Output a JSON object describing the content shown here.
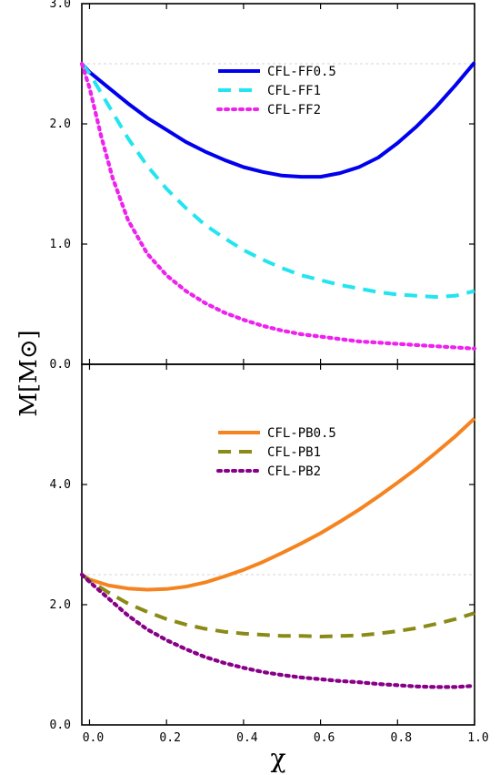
{
  "chart_data": [
    {
      "type": "line",
      "panel": "top",
      "title": "",
      "xlabel": "χ",
      "ylabel": "M[M⊙]",
      "xlim": [
        -0.02,
        1.0
      ],
      "ylim": [
        0.0,
        3.0
      ],
      "xticks": [
        0.0,
        0.2,
        0.4,
        0.6,
        0.8,
        1.0
      ],
      "x_tick_labels": [
        "0.0",
        "0.2",
        "0.4",
        "0.6",
        "0.8",
        "1.0"
      ],
      "yticks": [
        0.0,
        1.0,
        2.0,
        3.0
      ],
      "y_tick_labels": [
        "0.0",
        "1.0",
        "2.0",
        "3.0"
      ],
      "reference_line": 2.5,
      "grid": false,
      "legend_position": "top-center",
      "series": [
        {
          "name": "CFL-FF0.5",
          "color": "#0000ee",
          "dash": "solid",
          "x": [
            -0.02,
            0.0,
            0.05,
            0.1,
            0.15,
            0.2,
            0.25,
            0.3,
            0.35,
            0.4,
            0.45,
            0.5,
            0.55,
            0.6,
            0.65,
            0.7,
            0.75,
            0.8,
            0.85,
            0.9,
            0.95,
            1.0
          ],
          "y": [
            2.5,
            2.43,
            2.3,
            2.17,
            2.05,
            1.95,
            1.85,
            1.77,
            1.7,
            1.64,
            1.6,
            1.57,
            1.56,
            1.56,
            1.59,
            1.64,
            1.72,
            1.84,
            1.98,
            2.14,
            2.32,
            2.51
          ]
        },
        {
          "name": "CFL-FF1",
          "color": "#22e5ef",
          "dash": "dashed",
          "x": [
            -0.02,
            0.0,
            0.05,
            0.1,
            0.15,
            0.2,
            0.25,
            0.3,
            0.35,
            0.4,
            0.45,
            0.5,
            0.55,
            0.6,
            0.65,
            0.7,
            0.75,
            0.8,
            0.85,
            0.9,
            0.95,
            1.0
          ],
          "y": [
            2.5,
            2.42,
            2.15,
            1.88,
            1.65,
            1.46,
            1.3,
            1.16,
            1.05,
            0.95,
            0.87,
            0.8,
            0.74,
            0.7,
            0.66,
            0.63,
            0.6,
            0.58,
            0.57,
            0.56,
            0.57,
            0.61
          ]
        },
        {
          "name": "CFL-FF2",
          "color": "#ee22ee",
          "dash": "dotted",
          "x": [
            -0.02,
            0.0,
            0.03,
            0.06,
            0.1,
            0.15,
            0.2,
            0.25,
            0.3,
            0.35,
            0.4,
            0.45,
            0.5,
            0.55,
            0.6,
            0.65,
            0.7,
            0.75,
            0.8,
            0.85,
            0.9,
            0.95,
            1.0
          ],
          "y": [
            2.5,
            2.3,
            1.9,
            1.55,
            1.2,
            0.92,
            0.74,
            0.61,
            0.51,
            0.43,
            0.37,
            0.32,
            0.28,
            0.25,
            0.23,
            0.21,
            0.19,
            0.18,
            0.17,
            0.16,
            0.15,
            0.14,
            0.13
          ]
        }
      ]
    },
    {
      "type": "line",
      "panel": "bottom",
      "title": "",
      "xlabel": "χ",
      "ylabel": "M[M⊙]",
      "xlim": [
        -0.02,
        1.0
      ],
      "ylim": [
        0.0,
        6.0
      ],
      "xticks": [
        0.0,
        0.2,
        0.4,
        0.6,
        0.8,
        1.0
      ],
      "x_tick_labels": [
        "0.0",
        "0.2",
        "0.4",
        "0.6",
        "0.8",
        "1.0"
      ],
      "yticks": [
        0.0,
        2.0,
        4.0
      ],
      "y_tick_labels": [
        "0.0",
        "2.0",
        "4.0"
      ],
      "reference_line": 2.5,
      "grid": false,
      "legend_position": "top-center",
      "series": [
        {
          "name": "CFL-PB0.5",
          "color": "#f5831f",
          "dash": "solid",
          "x": [
            -0.02,
            0.0,
            0.05,
            0.1,
            0.15,
            0.2,
            0.25,
            0.3,
            0.35,
            0.4,
            0.45,
            0.5,
            0.55,
            0.6,
            0.65,
            0.7,
            0.75,
            0.8,
            0.85,
            0.9,
            0.95,
            1.0
          ],
          "y": [
            2.5,
            2.42,
            2.32,
            2.27,
            2.25,
            2.26,
            2.3,
            2.37,
            2.47,
            2.58,
            2.71,
            2.86,
            3.02,
            3.19,
            3.38,
            3.58,
            3.8,
            4.03,
            4.27,
            4.53,
            4.8,
            5.1
          ]
        },
        {
          "name": "CFL-PB1",
          "color": "#8a8a16",
          "dash": "dashed",
          "x": [
            -0.02,
            0.0,
            0.05,
            0.1,
            0.15,
            0.2,
            0.25,
            0.3,
            0.35,
            0.4,
            0.45,
            0.5,
            0.55,
            0.6,
            0.65,
            0.7,
            0.75,
            0.8,
            0.85,
            0.9,
            0.95,
            1.0
          ],
          "y": [
            2.5,
            2.4,
            2.2,
            2.02,
            1.88,
            1.76,
            1.67,
            1.6,
            1.55,
            1.52,
            1.5,
            1.48,
            1.48,
            1.47,
            1.48,
            1.49,
            1.52,
            1.56,
            1.61,
            1.68,
            1.76,
            1.86
          ]
        },
        {
          "name": "CFL-PB2",
          "color": "#880088",
          "dash": "dotted",
          "x": [
            -0.02,
            0.0,
            0.05,
            0.1,
            0.15,
            0.2,
            0.25,
            0.3,
            0.35,
            0.4,
            0.45,
            0.5,
            0.55,
            0.6,
            0.65,
            0.7,
            0.75,
            0.8,
            0.85,
            0.9,
            0.95,
            1.0
          ],
          "y": [
            2.5,
            2.38,
            2.1,
            1.82,
            1.59,
            1.41,
            1.26,
            1.13,
            1.03,
            0.95,
            0.88,
            0.83,
            0.79,
            0.76,
            0.73,
            0.71,
            0.68,
            0.66,
            0.64,
            0.63,
            0.63,
            0.65
          ]
        }
      ]
    }
  ]
}
